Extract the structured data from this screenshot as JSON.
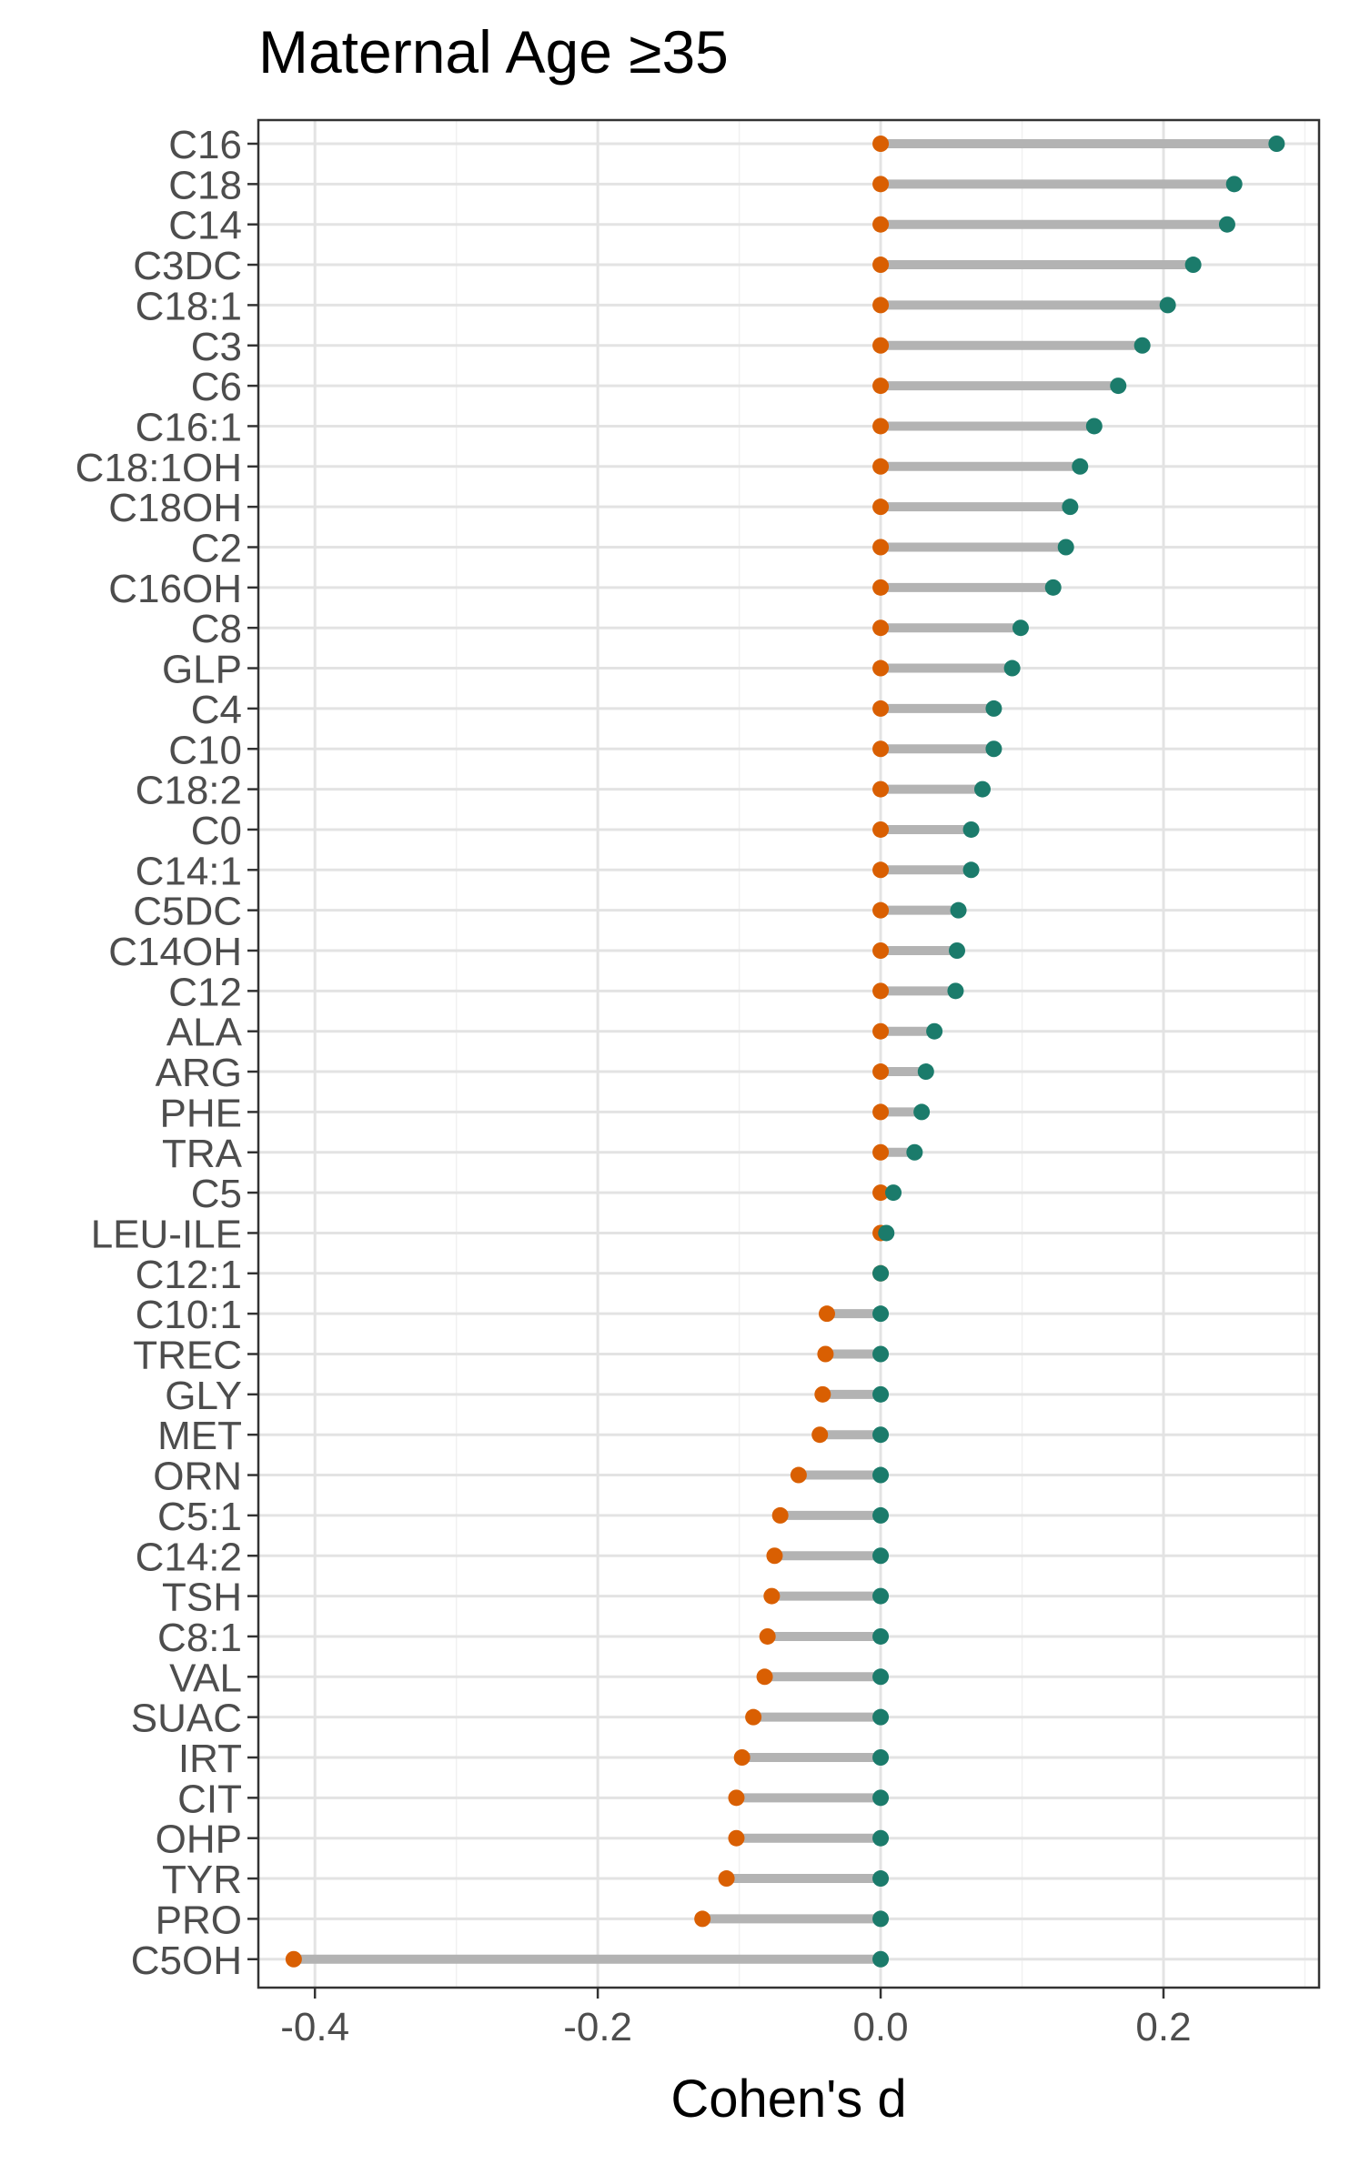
{
  "chart_data": {
    "type": "dumbbell",
    "title": "Maternal Age ≥35",
    "xlabel": "Cohen's d",
    "ylabel": "",
    "xlim": [
      -0.44,
      0.31
    ],
    "xticks": [
      -0.4,
      -0.2,
      0.0,
      0.2
    ],
    "xtick_labels": [
      "-0.4",
      "-0.2",
      "0.0",
      "0.2"
    ],
    "grid": true,
    "legend": "none",
    "colors": {
      "negative_end": "#d95f02",
      "positive_end": "#1b7b6b",
      "segment": "#b3b3b3",
      "grid_major": "#e3e3e3",
      "grid_minor": "#f1f1f1",
      "panel_border": "#333333",
      "text": "#4d4d4d"
    },
    "categories": [
      "C16",
      "C18",
      "C14",
      "C3DC",
      "C18:1",
      "C3",
      "C6",
      "C16:1",
      "C18:1OH",
      "C18OH",
      "C2",
      "C16OH",
      "C8",
      "GLP",
      "C4",
      "C10",
      "C18:2",
      "C0",
      "C14:1",
      "C5DC",
      "C14OH",
      "C12",
      "ALA",
      "ARG",
      "PHE",
      "TRA",
      "C5",
      "LEU-ILE",
      "C12:1",
      "C10:1",
      "TREC",
      "GLY",
      "MET",
      "ORN",
      "C5:1",
      "C14:2",
      "TSH",
      "C8:1",
      "VAL",
      "SUAC",
      "IRT",
      "CIT",
      "OHP",
      "TYR",
      "PRO",
      "C5OH"
    ],
    "values": [
      0.28,
      0.25,
      0.245,
      0.221,
      0.203,
      0.185,
      0.168,
      0.151,
      0.141,
      0.134,
      0.131,
      0.122,
      0.099,
      0.093,
      0.08,
      0.08,
      0.072,
      0.064,
      0.064,
      0.055,
      0.054,
      0.053,
      0.038,
      0.032,
      0.029,
      0.024,
      0.009,
      0.004,
      0.0,
      -0.038,
      -0.039,
      -0.041,
      -0.043,
      -0.058,
      -0.071,
      -0.075,
      -0.077,
      -0.08,
      -0.082,
      -0.09,
      -0.098,
      -0.102,
      -0.102,
      -0.109,
      -0.126,
      -0.415
    ]
  }
}
